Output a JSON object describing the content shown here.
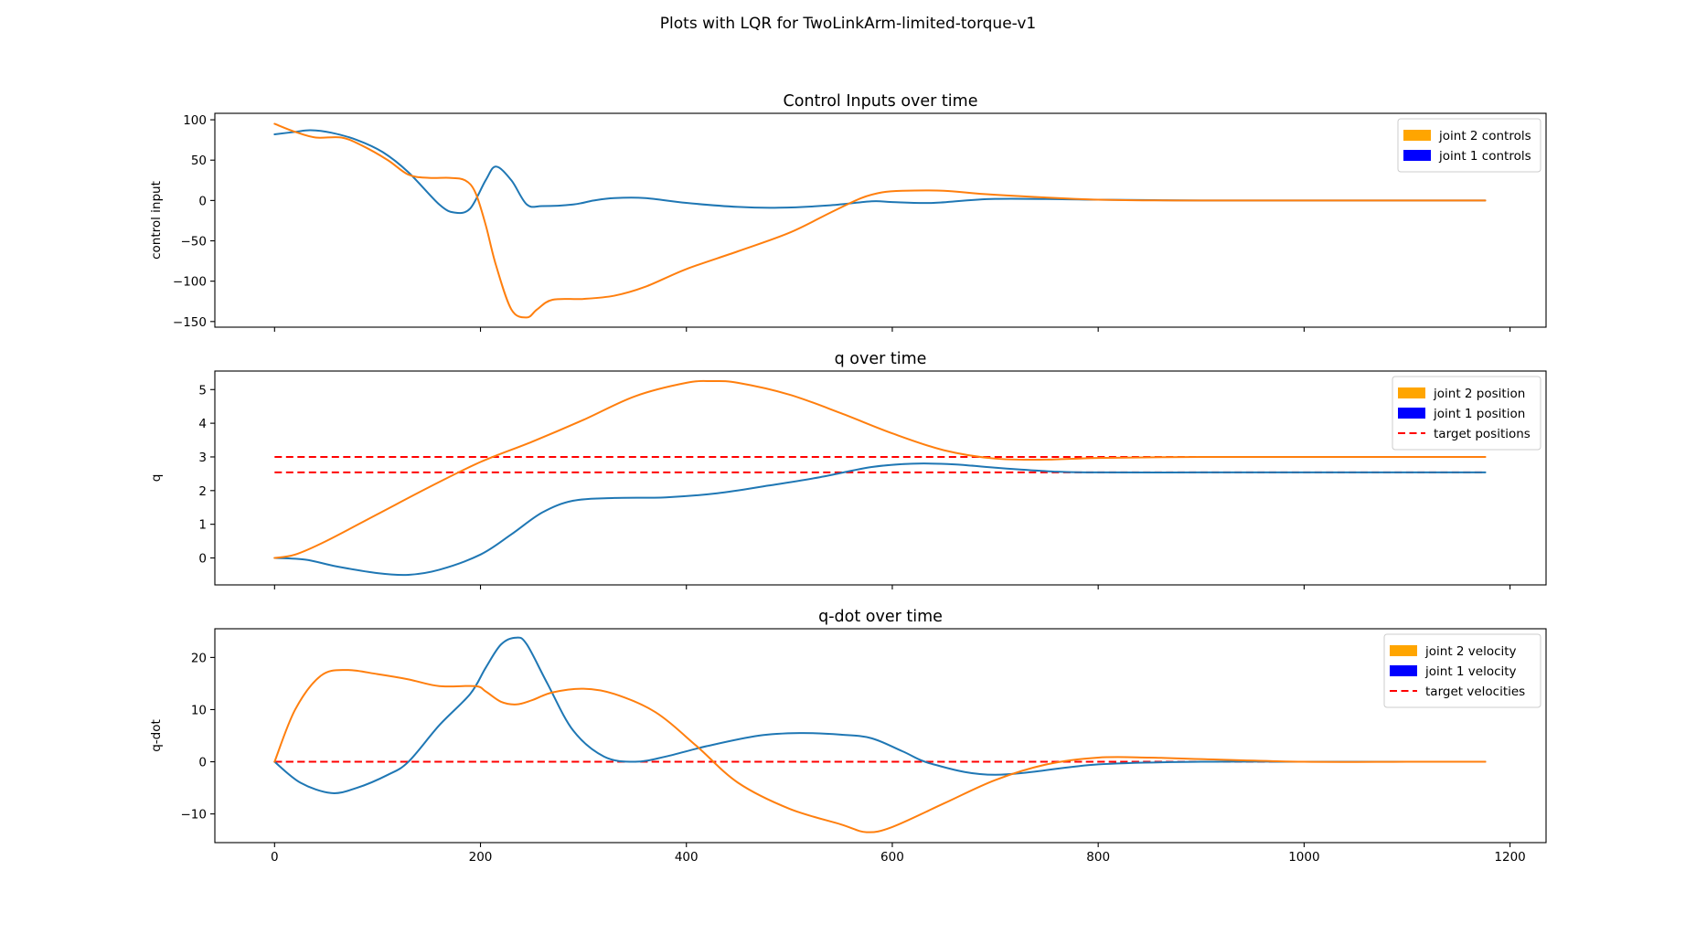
{
  "figure": {
    "suptitle": "Plots with LQR for TwoLinkArm-limited-torque-v1"
  },
  "colors": {
    "joint1": "#1f77b4",
    "joint2": "#ff7f0e",
    "legend_joint1_patch": "#0000ff",
    "legend_joint2_patch": "#ffa500",
    "target": "#ff0000"
  },
  "chart_data": [
    {
      "type": "line",
      "title": "Control Inputs over time",
      "xlabel": "",
      "ylabel": "control input",
      "xlim": [
        -58,
        1235
      ],
      "ylim": [
        -157,
        108
      ],
      "xticks": [
        0,
        200,
        400,
        600,
        800,
        1000,
        1200
      ],
      "yticks": [
        -150,
        -100,
        -50,
        0,
        50,
        100
      ],
      "show_xticklabels": false,
      "grid": false,
      "legend_position": "top-right",
      "legend": [
        {
          "label": "joint 2 controls",
          "kind": "patch",
          "color": "#ffa500"
        },
        {
          "label": "joint 1 controls",
          "kind": "patch",
          "color": "#0000ff"
        }
      ],
      "series": [
        {
          "name": "joint 1 controls",
          "color": "#1f77b4",
          "x": [
            0,
            20,
            35,
            55,
            80,
            105,
            130,
            160,
            175,
            190,
            205,
            215,
            230,
            245,
            260,
            290,
            310,
            330,
            360,
            400,
            450,
            490,
            540,
            580,
            600,
            640,
            700,
            800,
            900,
            1000,
            1100,
            1176
          ],
          "y": [
            82,
            85,
            87,
            84,
            75,
            60,
            35,
            -5,
            -15,
            -10,
            25,
            42,
            25,
            -5,
            -7,
            -5,
            0,
            3,
            3,
            -3,
            -8,
            -9,
            -6,
            -1,
            -2,
            -3,
            2,
            1,
            0,
            0,
            0,
            0
          ]
        },
        {
          "name": "joint 2 controls",
          "color": "#ff7f0e",
          "x": [
            0,
            20,
            40,
            65,
            85,
            110,
            130,
            150,
            170,
            185,
            195,
            205,
            215,
            230,
            245,
            255,
            270,
            300,
            330,
            360,
            400,
            450,
            500,
            540,
            570,
            590,
            610,
            650,
            700,
            800,
            900,
            1000,
            1100,
            1176
          ],
          "y": [
            95,
            85,
            78,
            78,
            68,
            50,
            32,
            28,
            28,
            25,
            10,
            -30,
            -80,
            -135,
            -145,
            -135,
            -123,
            -122,
            -118,
            -107,
            -85,
            -63,
            -40,
            -15,
            3,
            10,
            12,
            12,
            7,
            1,
            0,
            0,
            0,
            0
          ]
        }
      ]
    },
    {
      "type": "line",
      "title": "q over time",
      "xlabel": "",
      "ylabel": "q",
      "xlim": [
        -58,
        1235
      ],
      "ylim": [
        -0.8,
        5.55
      ],
      "xticks": [
        0,
        200,
        400,
        600,
        800,
        1000,
        1200
      ],
      "yticks": [
        0,
        1,
        2,
        3,
        4,
        5
      ],
      "show_xticklabels": false,
      "grid": false,
      "legend_position": "top-right",
      "legend": [
        {
          "label": "joint 2 position",
          "kind": "patch",
          "color": "#ffa500"
        },
        {
          "label": "joint 1 position",
          "kind": "patch",
          "color": "#0000ff"
        },
        {
          "label": "target positions",
          "kind": "dashed",
          "color": "#ff0000"
        }
      ],
      "series": [
        {
          "name": "joint 1 position",
          "color": "#1f77b4",
          "x": [
            0,
            30,
            60,
            100,
            130,
            160,
            200,
            230,
            260,
            290,
            330,
            380,
            430,
            480,
            530,
            580,
            620,
            660,
            700,
            760,
            800,
            900,
            1000,
            1100,
            1176
          ],
          "y": [
            0,
            -0.05,
            -0.25,
            -0.45,
            -0.5,
            -0.35,
            0.1,
            0.7,
            1.35,
            1.7,
            1.78,
            1.8,
            1.92,
            2.15,
            2.4,
            2.7,
            2.8,
            2.78,
            2.68,
            2.56,
            2.54,
            2.54,
            2.54,
            2.54,
            2.54
          ]
        },
        {
          "name": "joint 2 position",
          "color": "#ff7f0e",
          "x": [
            0,
            20,
            50,
            100,
            150,
            200,
            250,
            300,
            350,
            400,
            425,
            450,
            500,
            550,
            600,
            650,
            700,
            750,
            800,
            900,
            1000,
            1100,
            1176
          ],
          "y": [
            0,
            0.1,
            0.5,
            1.3,
            2.1,
            2.85,
            3.45,
            4.1,
            4.8,
            5.2,
            5.25,
            5.2,
            4.85,
            4.3,
            3.7,
            3.2,
            2.95,
            2.92,
            2.97,
            3.0,
            3.0,
            3.0,
            3.0
          ]
        }
      ],
      "reference_lines": [
        {
          "name": "target positions",
          "y": 3.0,
          "x": [
            0,
            1176
          ],
          "color": "#ff0000",
          "dashed": true
        },
        {
          "name": "target positions",
          "y": 2.54,
          "x": [
            0,
            1176
          ],
          "color": "#ff0000",
          "dashed": true
        }
      ]
    },
    {
      "type": "line",
      "title": "q-dot over time",
      "xlabel": "",
      "ylabel": "q-dot",
      "xlim": [
        -58,
        1235
      ],
      "ylim": [
        -15.5,
        25.5
      ],
      "xticks": [
        0,
        200,
        400,
        600,
        800,
        1000,
        1200
      ],
      "xticklabels": [
        "0",
        "200",
        "400",
        "600",
        "800",
        "1000",
        "1200"
      ],
      "yticks": [
        -10,
        0,
        10,
        20
      ],
      "show_xticklabels": true,
      "grid": false,
      "legend_position": "top-right",
      "legend": [
        {
          "label": "joint 2 velocity",
          "kind": "patch",
          "color": "#ffa500"
        },
        {
          "label": "joint 1 velocity",
          "kind": "patch",
          "color": "#0000ff"
        },
        {
          "label": "target velocities",
          "kind": "dashed",
          "color": "#ff0000"
        }
      ],
      "series": [
        {
          "name": "joint 1 velocity",
          "color": "#1f77b4",
          "x": [
            0,
            25,
            55,
            80,
            110,
            130,
            160,
            190,
            205,
            220,
            235,
            245,
            265,
            290,
            320,
            350,
            380,
            420,
            470,
            510,
            550,
            580,
            610,
            640,
            700,
            800,
            900,
            1000,
            1100,
            1176
          ],
          "y": [
            0,
            -4,
            -6,
            -5,
            -2.5,
            0,
            7,
            13,
            18,
            22.5,
            23.8,
            22.5,
            15,
            6,
            1,
            0,
            1,
            3,
            5,
            5.5,
            5.2,
            4.5,
            2,
            -0.5,
            -2.5,
            -0.5,
            0,
            0,
            0,
            0
          ]
        },
        {
          "name": "joint 2 velocity",
          "color": "#ff7f0e",
          "x": [
            0,
            20,
            45,
            70,
            100,
            130,
            160,
            195,
            205,
            220,
            235,
            250,
            270,
            300,
            330,
            370,
            410,
            450,
            500,
            550,
            575,
            600,
            650,
            700,
            750,
            800,
            850,
            900,
            1000,
            1100,
            1176
          ],
          "y": [
            0,
            10,
            16.5,
            17.6,
            16.8,
            15.8,
            14.5,
            14.5,
            13.5,
            11.5,
            11,
            11.8,
            13.3,
            14,
            13,
            9.5,
            3,
            -4,
            -9,
            -12,
            -13.5,
            -12.5,
            -8,
            -3.5,
            -0.5,
            0.8,
            0.8,
            0.5,
            0,
            0,
            0
          ]
        }
      ],
      "reference_lines": [
        {
          "name": "target velocities",
          "y": 0,
          "x": [
            0,
            1176
          ],
          "color": "#ff0000",
          "dashed": true
        },
        {
          "name": "target velocities",
          "y": 0,
          "x": [
            0,
            1176
          ],
          "color": "#ff0000",
          "dashed": true
        }
      ]
    }
  ]
}
